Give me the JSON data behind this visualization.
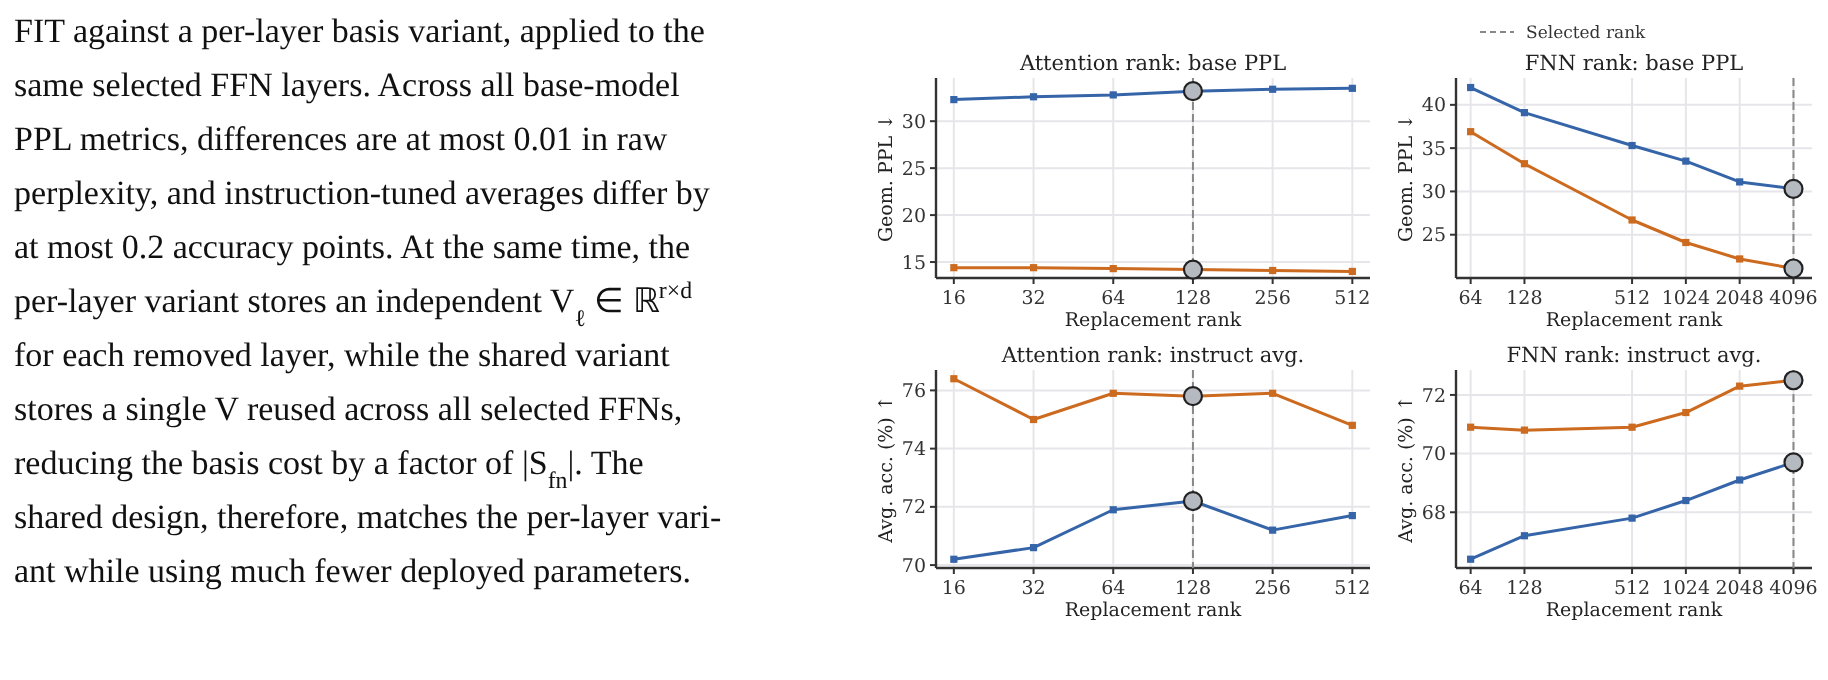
{
  "chart_data": [
    {
      "type": "line",
      "title": "Attention rank: base PPL",
      "xlabel": "Replacement rank",
      "ylabel": "Geom. PPL ↓",
      "log": "x",
      "xlim": [
        13.7,
        597
      ],
      "xticks": [
        16,
        32,
        64,
        128,
        256,
        512
      ],
      "ylim": [
        13.3,
        34.6
      ],
      "yticks": [
        15,
        20,
        25,
        30
      ],
      "grid": true,
      "marker": "square",
      "line_style": "solid",
      "legend": "top",
      "series": [
        {
          "color": "#cc6a1f",
          "x": [
            16,
            32,
            64,
            128,
            256,
            512
          ],
          "values": [
            14.4,
            14.4,
            14.3,
            14.2,
            14.1,
            14.0
          ]
        },
        {
          "color": "#3565a8",
          "x": [
            16,
            32,
            64,
            128,
            256,
            512
          ],
          "values": [
            32.3,
            32.6,
            32.8,
            33.2,
            33.4,
            33.5
          ]
        }
      ],
      "ref_lines": [
        {
          "axis": "x",
          "value": 128,
          "label": "Selected rank",
          "color": "#888888",
          "line_style": "dashed"
        }
      ],
      "annotations": [
        "FIT against a per-layer basis variant, applied to the",
        "same selected FFN layers. Across all base-model",
        "PPL metrics, differences are at most 0.01 in raw",
        "perplexity, and instruction-tuned averages differ by",
        "at most 0.2 accuracy points. At the same time, the",
        "per-layer variant stores an independent V$_{ℓ}$ ∈ ℝ$^{r×d}$",
        "for each removed layer, while the shared variant",
        "stores a single V reused across all selected FFNs,",
        "reducing the basis cost by a factor of |S$_{fn}$|. The",
        "shared design, therefore, matches the per-layer vari-",
        "ant while using much fewer deployed parameters."
      ]
    },
    {
      "type": "line",
      "title": "FNN rank: base PPL",
      "xlabel": "Replacement rank",
      "ylabel": "Geom. PPL ↓",
      "log": "x",
      "xlim": [
        53,
        5200
      ],
      "xticks": [
        64,
        128,
        512,
        1024,
        2048,
        4096
      ],
      "ylim": [
        20,
        43.1
      ],
      "yticks": [
        25,
        30,
        35,
        40
      ],
      "grid": true,
      "marker": "square",
      "line_style": "solid",
      "series": [
        {
          "color": "#cc6a1f",
          "x": [
            64,
            128,
            512,
            1024,
            2048,
            4096
          ],
          "values": [
            36.9,
            33.2,
            26.7,
            24.1,
            22.2,
            21.1
          ]
        },
        {
          "color": "#3565a8",
          "x": [
            64,
            128,
            512,
            1024,
            2048,
            4096
          ],
          "values": [
            42.0,
            39.1,
            35.3,
            33.5,
            31.1,
            30.3
          ]
        }
      ],
      "ref_lines": [
        {
          "axis": "x",
          "value": 4096,
          "color": "#888888",
          "line_style": "dashed"
        }
      ]
    },
    {
      "type": "line",
      "title": "Attention rank: instruct avg.",
      "xlabel": "Replacement rank",
      "ylabel": "Avg. acc. (%) ↑",
      "log": "x",
      "xlim": [
        13.7,
        597
      ],
      "xticks": [
        16,
        32,
        64,
        128,
        256,
        512
      ],
      "ylim": [
        69.9,
        76.7
      ],
      "yticks": [
        70,
        72,
        74,
        76
      ],
      "grid": true,
      "marker": "square",
      "line_style": "solid",
      "series": [
        {
          "color": "#cc6a1f",
          "x": [
            16,
            32,
            64,
            128,
            256,
            512
          ],
          "values": [
            76.4,
            75.0,
            75.9,
            75.8,
            75.9,
            74.8
          ]
        },
        {
          "color": "#3565a8",
          "x": [
            16,
            32,
            64,
            128,
            256,
            512
          ],
          "values": [
            70.2,
            70.6,
            71.9,
            72.2,
            71.2,
            71.7
          ]
        }
      ],
      "ref_lines": [
        {
          "axis": "x",
          "value": 128,
          "color": "#888888",
          "line_style": "dashed"
        }
      ]
    },
    {
      "type": "line",
      "title": "FNN rank: instruct avg.",
      "xlabel": "Replacement rank",
      "ylabel": "Avg. acc. (%) ↑",
      "log": "x",
      "xlim": [
        53,
        5200
      ],
      "xticks": [
        64,
        128,
        512,
        1024,
        2048,
        4096
      ],
      "ylim": [
        66.1,
        72.85
      ],
      "yticks": [
        68,
        70,
        72
      ],
      "grid": true,
      "marker": "square",
      "line_style": "solid",
      "series": [
        {
          "color": "#cc6a1f",
          "x": [
            64,
            128,
            512,
            1024,
            2048,
            4096
          ],
          "values": [
            70.9,
            70.8,
            70.9,
            71.4,
            72.3,
            72.5
          ]
        },
        {
          "color": "#3565a8",
          "x": [
            64,
            128,
            512,
            1024,
            2048,
            4096
          ],
          "values": [
            66.4,
            67.2,
            67.8,
            68.4,
            69.1,
            69.7
          ]
        }
      ],
      "ref_lines": [
        {
          "axis": "x",
          "value": 4096,
          "color": "#888888",
          "line_style": "dashed"
        }
      ]
    }
  ]
}
